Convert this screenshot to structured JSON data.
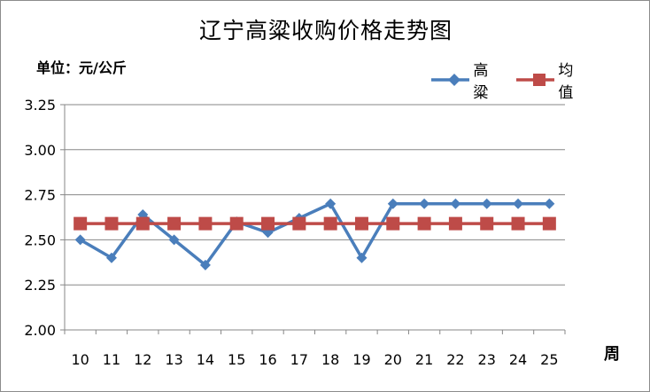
{
  "chart_data": {
    "type": "line",
    "title": "辽宁高粱收购价格走势图",
    "ylabel": "单位：元/公斤",
    "xlabel": "周",
    "categories": [
      "10",
      "11",
      "12",
      "13",
      "14",
      "15",
      "16",
      "17",
      "18",
      "19",
      "20",
      "21",
      "22",
      "23",
      "24",
      "25"
    ],
    "ylim": [
      2.0,
      3.25
    ],
    "yticks": [
      "2.00",
      "2.25",
      "2.50",
      "2.75",
      "3.00",
      "3.25"
    ],
    "grid": true,
    "legend_position": "top-right",
    "series": [
      {
        "name": "高粱",
        "color": "#4a7ebb",
        "marker": "diamond",
        "values": [
          2.5,
          2.4,
          2.64,
          2.5,
          2.36,
          2.6,
          2.54,
          2.62,
          2.7,
          2.4,
          2.7,
          2.7,
          2.7,
          2.7,
          2.7,
          2.7
        ]
      },
      {
        "name": "均值",
        "color": "#be4b48",
        "marker": "square",
        "values": [
          2.59,
          2.59,
          2.59,
          2.59,
          2.59,
          2.59,
          2.59,
          2.59,
          2.59,
          2.59,
          2.59,
          2.59,
          2.59,
          2.59,
          2.59,
          2.59
        ]
      }
    ]
  }
}
